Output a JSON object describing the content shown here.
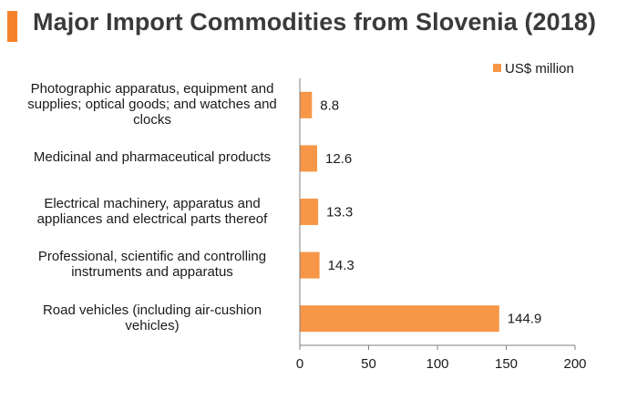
{
  "title": "Major Import Commodities from Slovenia (2018)",
  "colors": {
    "accent": "#f5822a",
    "bar": "#f79646",
    "axis": "#7f7f7f"
  },
  "chart_data": {
    "type": "bar",
    "orientation": "horizontal",
    "title": "Major Import Commodities from Slovenia (2018)",
    "categories": [
      "Photographic apparatus, equipment and supplies; optical goods; and watches and clocks",
      "Medicinal and pharmaceutical products",
      "Electrical machinery, apparatus and appliances and electrical parts thereof",
      "Professional, scientific and controlling instruments and apparatus",
      "Road vehicles (including air-cushion vehicles)"
    ],
    "category_lines": [
      [
        "Photographic apparatus, equipment and",
        "supplies; optical goods; and watches and",
        "clocks"
      ],
      [
        "Medicinal and pharmaceutical products"
      ],
      [
        "Electrical machinery, apparatus and",
        "appliances and electrical parts thereof"
      ],
      [
        "Professional, scientific and controlling",
        "instruments and apparatus"
      ],
      [
        "Road vehicles (including air-cushion",
        "vehicles)"
      ]
    ],
    "series": [
      {
        "name": "US$ million",
        "values": [
          8.8,
          12.6,
          13.3,
          14.3,
          144.9
        ]
      }
    ],
    "value_labels": [
      "8.8",
      "12.6",
      "13.3",
      "14.3",
      "144.9"
    ],
    "xlim": [
      0,
      200
    ],
    "xticks": [
      0,
      50,
      100,
      150,
      200
    ],
    "xtick_labels": [
      "0",
      "50",
      "100",
      "150",
      "200"
    ],
    "legend": "top-right",
    "grid": false
  }
}
